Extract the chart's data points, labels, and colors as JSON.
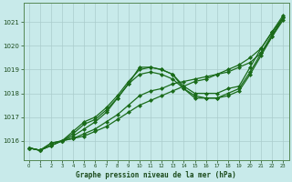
{
  "xlabel": "Graphe pression niveau de la mer (hPa)",
  "bg_color": "#c8eaea",
  "grid_color": "#b8d8d8",
  "line_color": "#1a6b1a",
  "xlim": [
    -0.5,
    23.5
  ],
  "ylim": [
    1015.2,
    1021.8
  ],
  "yticks": [
    1016,
    1017,
    1018,
    1019,
    1020,
    1021
  ],
  "xticks": [
    0,
    1,
    2,
    3,
    4,
    5,
    6,
    7,
    8,
    9,
    10,
    11,
    12,
    13,
    14,
    15,
    16,
    17,
    18,
    19,
    20,
    21,
    22,
    23
  ],
  "series": [
    [
      1015.7,
      1015.6,
      1015.9,
      1016.0,
      1016.1,
      1016.2,
      1016.4,
      1016.6,
      1016.9,
      1017.2,
      1017.5,
      1017.7,
      1017.9,
      1018.1,
      1018.3,
      1018.5,
      1018.6,
      1018.8,
      1019.0,
      1019.2,
      1019.5,
      1019.9,
      1020.6,
      1021.3
    ],
    [
      1015.7,
      1015.6,
      1015.9,
      1016.0,
      1016.1,
      1016.3,
      1016.5,
      1016.8,
      1017.1,
      1017.5,
      1017.9,
      1018.1,
      1018.2,
      1018.4,
      1018.5,
      1018.6,
      1018.7,
      1018.8,
      1018.9,
      1019.1,
      1019.3,
      1019.7,
      1020.4,
      1021.2
    ],
    [
      1015.7,
      1015.6,
      1015.8,
      1016.0,
      1016.2,
      1016.5,
      1016.8,
      1017.2,
      1017.8,
      1018.4,
      1019.1,
      1019.1,
      1019.0,
      1018.8,
      1018.3,
      1018.0,
      1018.0,
      1018.0,
      1018.2,
      1018.3,
      1019.1,
      1019.9,
      1020.6,
      1021.2
    ],
    [
      1015.7,
      1015.6,
      1015.8,
      1016.0,
      1016.3,
      1016.7,
      1016.9,
      1017.3,
      1017.8,
      1018.4,
      1018.8,
      1018.9,
      1018.8,
      1018.6,
      1018.2,
      1017.9,
      1017.8,
      1017.8,
      1017.9,
      1018.1,
      1018.8,
      1019.6,
      1020.4,
      1021.1
    ],
    [
      1015.7,
      1015.6,
      1015.8,
      1016.0,
      1016.4,
      1016.8,
      1017.0,
      1017.4,
      1017.9,
      1018.5,
      1019.0,
      1019.1,
      1019.0,
      1018.8,
      1018.2,
      1017.8,
      1017.8,
      1017.8,
      1018.0,
      1018.2,
      1018.9,
      1019.7,
      1020.5,
      1021.2
    ]
  ]
}
